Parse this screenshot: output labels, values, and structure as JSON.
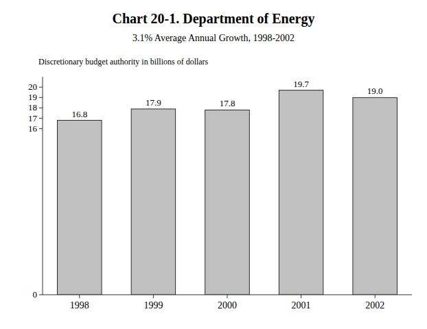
{
  "chart_data": {
    "type": "bar",
    "title": "Chart 20-1.  Department of Energy",
    "subtitle": "3.1% Average Annual Growth, 1998-2002",
    "ylabel": "Discretionary budget authority in billions of dollars",
    "categories": [
      "1998",
      "1999",
      "2000",
      "2001",
      "2002"
    ],
    "values": [
      16.8,
      17.9,
      17.8,
      19.7,
      19.0
    ],
    "value_labels": [
      "16.8",
      "17.9",
      "17.8",
      "19.7",
      "19.0"
    ],
    "data_labels": true,
    "color": "#c0c0c0",
    "ylim": [
      0,
      21
    ],
    "yticks": [
      0,
      16,
      17,
      18,
      19,
      20
    ],
    "grid": false
  }
}
